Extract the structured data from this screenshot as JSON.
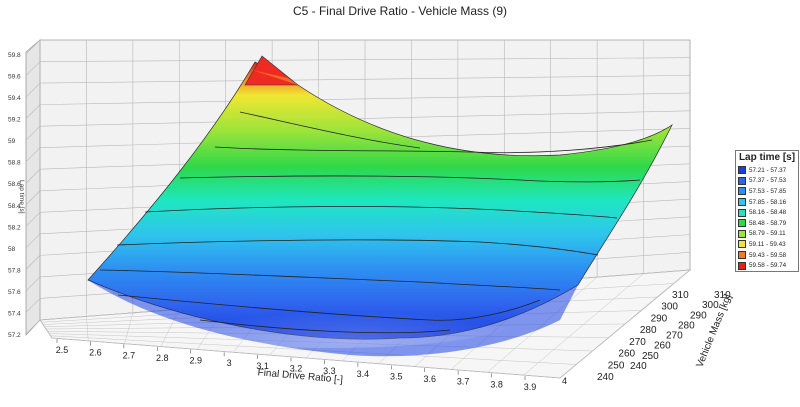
{
  "chart_data": {
    "type": "surface3d",
    "title": "C5 - Final Drive Ratio - Vehicle Mass (9)",
    "xlabel": "Final Drive Ratio [-]",
    "ylabel": "Vehicle Mass [kg]",
    "zlabel": "Lap time [s]",
    "xlim": [
      2.5,
      3.9
    ],
    "ylim": [
      240,
      310
    ],
    "zlim": [
      57.2,
      59.8
    ],
    "x_ticks": [
      "2.5",
      "2.6",
      "2.7",
      "2.8",
      "2.9",
      "3",
      "3.1",
      "3.2",
      "3.3",
      "3.4",
      "3.5",
      "3.6",
      "3.7",
      "3.8",
      "3.9"
    ],
    "y_ticks_near": [
      "240",
      "250",
      "260",
      "270",
      "280",
      "290",
      "300",
      "310"
    ],
    "y_ticks_far": [
      "4",
      "240",
      "250",
      "260",
      "270",
      "280",
      "290",
      "300",
      "310"
    ],
    "z_ticks": [
      "57.2",
      "57.4",
      "57.6",
      "57.8",
      "58",
      "58.2",
      "58.4",
      "58.6",
      "58.8",
      "59",
      "59.2",
      "59.4",
      "59.6",
      "59.8"
    ],
    "corner_values": {
      "x2.5_y240": 57.65,
      "x2.5_y310": 59.75,
      "x3.9_y240": 57.6,
      "x3.9_y310": 59.1,
      "min": 57.21
    },
    "grid": true,
    "legend": {
      "title": "Lap time [s]",
      "placement": "right",
      "entries": [
        {
          "label": "57.21 - 57.37",
          "color": "#1a3fe0"
        },
        {
          "label": "57.37 - 57.53",
          "color": "#2f62ee"
        },
        {
          "label": "57.53 - 57.85",
          "color": "#2e8ff2"
        },
        {
          "label": "57.85 - 58.16",
          "color": "#2ec6ec"
        },
        {
          "label": "58.16 - 58.48",
          "color": "#1ee7c0"
        },
        {
          "label": "58.48 - 58.79",
          "color": "#2ed84a"
        },
        {
          "label": "58.79 - 59.11",
          "color": "#9be43a"
        },
        {
          "label": "59.11 - 59.43",
          "color": "#f0e632"
        },
        {
          "label": "59.43 - 59.58",
          "color": "#f07a28"
        },
        {
          "label": "59.58 - 59.74",
          "color": "#e81e1e"
        }
      ]
    }
  }
}
